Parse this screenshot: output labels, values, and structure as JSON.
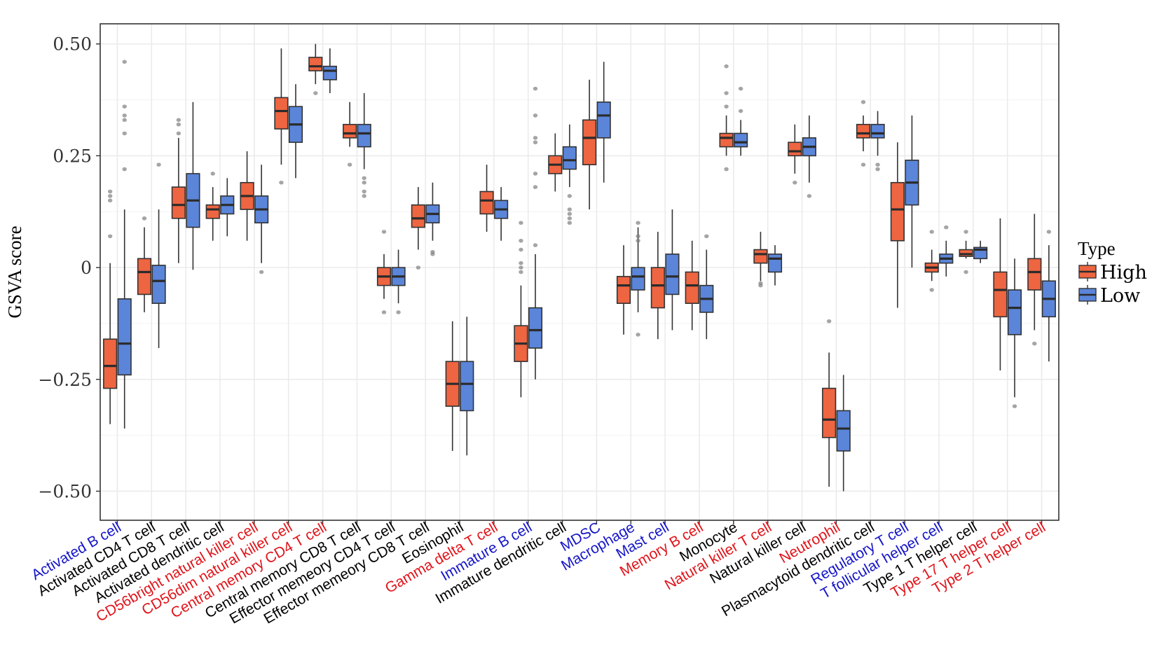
{
  "chart_data": {
    "type": "box",
    "title": "",
    "xlabel": "",
    "ylabel": "GSVA score",
    "ylim": [
      -0.565,
      0.545
    ],
    "yticks": [
      0.5,
      0.25,
      0,
      -0.25,
      -0.5
    ],
    "ytick_labels": [
      "0.50",
      "0.25",
      "0",
      "−0.25",
      "−0.50"
    ],
    "grid": true,
    "legend": {
      "title": "Type",
      "position": "right",
      "entries": [
        {
          "name": "High",
          "color": "#ee6541"
        },
        {
          "name": "Low",
          "color": "#5b85d9"
        }
      ]
    },
    "label_colors": {
      "blue": "#1515c8",
      "red": "#e0141a",
      "black": "#000000"
    },
    "categories": [
      {
        "label": "Activated B cell",
        "color": "blue"
      },
      {
        "label": "Activated CD4 T cell",
        "color": "black"
      },
      {
        "label": "Activated CD8 T cell",
        "color": "black"
      },
      {
        "label": "Activated dendritic cell",
        "color": "black"
      },
      {
        "label": "CD56bright natural killer cell",
        "color": "red"
      },
      {
        "label": "CD56dim natural killer cell",
        "color": "red"
      },
      {
        "label": "Central memory CD4 T cell",
        "color": "red"
      },
      {
        "label": "Central memory CD8 T cell",
        "color": "black"
      },
      {
        "label": "Effector memeory CD4 T cell",
        "color": "black"
      },
      {
        "label": "Effector memeory CD8 T cell",
        "color": "black"
      },
      {
        "label": "Eosinophil",
        "color": "black"
      },
      {
        "label": "Gamma delta T cell",
        "color": "red"
      },
      {
        "label": "Immature  B cell",
        "color": "blue"
      },
      {
        "label": "Immature dendritic cell",
        "color": "black"
      },
      {
        "label": "MDSC",
        "color": "blue"
      },
      {
        "label": "Macrophage",
        "color": "blue"
      },
      {
        "label": "Mast cell",
        "color": "blue"
      },
      {
        "label": "Memory B cell",
        "color": "red"
      },
      {
        "label": "Monocyte",
        "color": "black"
      },
      {
        "label": "Natural killer T cell",
        "color": "red"
      },
      {
        "label": "Natural killer cell",
        "color": "black"
      },
      {
        "label": "Neutrophil",
        "color": "red"
      },
      {
        "label": "Plasmacytoid dendritic cell",
        "color": "black"
      },
      {
        "label": "Regulatory T cell",
        "color": "blue"
      },
      {
        "label": "T follicular helper cell",
        "color": "blue"
      },
      {
        "label": "Type 1 T helper cell",
        "color": "black"
      },
      {
        "label": "Type 17 T helper cell",
        "color": "red"
      },
      {
        "label": "Type 2 T helper cell",
        "color": "red"
      }
    ],
    "stats_format": [
      "whisker_low",
      "q1",
      "median",
      "q3",
      "whisker_high"
    ],
    "series": [
      {
        "name": "High",
        "color": "#ee6541",
        "boxes": [
          {
            "stats": [
              -0.35,
              -0.27,
              -0.22,
              -0.16,
              0.01
            ],
            "outliers": [
              0.07,
              0.15,
              0.16,
              0.17
            ]
          },
          {
            "stats": [
              -0.1,
              -0.06,
              -0.01,
              0.02,
              0.09
            ],
            "outliers": [
              0.11
            ]
          },
          {
            "stats": [
              0.01,
              0.11,
              0.14,
              0.18,
              0.29
            ],
            "outliers": [
              0.3,
              0.32,
              0.33
            ]
          },
          {
            "stats": [
              0.06,
              0.11,
              0.13,
              0.14,
              0.18
            ],
            "outliers": [
              0.21
            ]
          },
          {
            "stats": [
              0.06,
              0.13,
              0.16,
              0.19,
              0.26
            ],
            "outliers": []
          },
          {
            "stats": [
              0.23,
              0.31,
              0.35,
              0.38,
              0.49
            ],
            "outliers": [
              0.19
            ]
          },
          {
            "stats": [
              0.41,
              0.44,
              0.45,
              0.47,
              0.5
            ],
            "outliers": [
              0.39
            ]
          },
          {
            "stats": [
              0.27,
              0.29,
              0.3,
              0.32,
              0.37
            ],
            "outliers": [
              0.23
            ]
          },
          {
            "stats": [
              -0.07,
              -0.04,
              -0.02,
              0.0,
              0.03
            ],
            "outliers": [
              -0.1,
              0.08
            ]
          },
          {
            "stats": [
              0.04,
              0.09,
              0.11,
              0.14,
              0.18
            ],
            "outliers": [
              0.0
            ]
          },
          {
            "stats": [
              -0.41,
              -0.31,
              -0.26,
              -0.21,
              -0.12
            ],
            "outliers": []
          },
          {
            "stats": [
              0.08,
              0.12,
              0.15,
              0.17,
              0.23
            ],
            "outliers": []
          },
          {
            "stats": [
              -0.29,
              -0.21,
              -0.17,
              -0.13,
              -0.04
            ],
            "outliers": [
              -0.01,
              0.0,
              0.01,
              0.04,
              0.06,
              0.1
            ]
          },
          {
            "stats": [
              0.17,
              0.21,
              0.23,
              0.25,
              0.3
            ],
            "outliers": []
          },
          {
            "stats": [
              0.13,
              0.23,
              0.29,
              0.33,
              0.42
            ],
            "outliers": []
          },
          {
            "stats": [
              -0.15,
              -0.08,
              -0.04,
              -0.02,
              0.05
            ],
            "outliers": []
          },
          {
            "stats": [
              -0.16,
              -0.09,
              -0.04,
              0.0,
              0.08
            ],
            "outliers": []
          },
          {
            "stats": [
              -0.14,
              -0.08,
              -0.04,
              -0.01,
              0.06
            ],
            "outliers": []
          },
          {
            "stats": [
              0.25,
              0.27,
              0.29,
              0.3,
              0.34
            ],
            "outliers": [
              0.22,
              0.36,
              0.39,
              0.45
            ]
          },
          {
            "stats": [
              -0.03,
              0.01,
              0.03,
              0.04,
              0.08
            ],
            "outliers": [
              -0.04,
              -0.035
            ]
          },
          {
            "stats": [
              0.21,
              0.25,
              0.26,
              0.28,
              0.32
            ],
            "outliers": [
              0.19
            ]
          },
          {
            "stats": [
              -0.49,
              -0.38,
              -0.34,
              -0.27,
              -0.19
            ],
            "outliers": [
              -0.12
            ]
          },
          {
            "stats": [
              0.26,
              0.29,
              0.3,
              0.32,
              0.34
            ],
            "outliers": [
              0.23,
              0.37
            ]
          },
          {
            "stats": [
              -0.09,
              0.06,
              0.13,
              0.19,
              0.28
            ],
            "outliers": []
          },
          {
            "stats": [
              -0.03,
              -0.01,
              0.0,
              0.01,
              0.04
            ],
            "outliers": [
              -0.05,
              0.08
            ]
          },
          {
            "stats": [
              0.02,
              0.025,
              0.03,
              0.04,
              0.06
            ],
            "outliers": [
              -0.01,
              0.08
            ]
          },
          {
            "stats": [
              -0.23,
              -0.11,
              -0.05,
              -0.01,
              0.11
            ],
            "outliers": []
          },
          {
            "stats": [
              -0.14,
              -0.05,
              -0.01,
              0.02,
              0.12
            ],
            "outliers": [
              -0.17
            ]
          }
        ]
      },
      {
        "name": "Low",
        "color": "#5b85d9",
        "boxes": [
          {
            "stats": [
              -0.36,
              -0.24,
              -0.17,
              -0.07,
              0.13
            ],
            "outliers": [
              0.22,
              0.3,
              0.33,
              0.34,
              0.36,
              0.46
            ]
          },
          {
            "stats": [
              -0.18,
              -0.08,
              -0.03,
              0.005,
              0.13
            ],
            "outliers": [
              0.23
            ]
          },
          {
            "stats": [
              -0.005,
              0.09,
              0.15,
              0.21,
              0.37
            ],
            "outliers": []
          },
          {
            "stats": [
              0.07,
              0.12,
              0.14,
              0.16,
              0.2
            ],
            "outliers": []
          },
          {
            "stats": [
              0.01,
              0.1,
              0.13,
              0.16,
              0.23
            ],
            "outliers": [
              -0.01
            ]
          },
          {
            "stats": [
              0.2,
              0.28,
              0.32,
              0.36,
              0.41
            ],
            "outliers": []
          },
          {
            "stats": [
              0.39,
              0.42,
              0.44,
              0.45,
              0.49
            ],
            "outliers": []
          },
          {
            "stats": [
              0.22,
              0.27,
              0.3,
              0.32,
              0.39
            ],
            "outliers": [
              0.16,
              0.17,
              0.19,
              0.2
            ]
          },
          {
            "stats": [
              -0.08,
              -0.04,
              -0.02,
              0.0,
              0.04
            ],
            "outliers": [
              -0.1
            ]
          },
          {
            "stats": [
              0.06,
              0.1,
              0.12,
              0.14,
              0.19
            ],
            "outliers": [
              0.03,
              0.035
            ]
          },
          {
            "stats": [
              -0.42,
              -0.32,
              -0.26,
              -0.21,
              -0.11
            ],
            "outliers": []
          },
          {
            "stats": [
              0.06,
              0.11,
              0.13,
              0.15,
              0.18
            ],
            "outliers": []
          },
          {
            "stats": [
              -0.25,
              -0.18,
              -0.14,
              -0.09,
              0.03
            ],
            "outliers": [
              0.05,
              0.18,
              0.21,
              0.28,
              0.29,
              0.34,
              0.4
            ]
          },
          {
            "stats": [
              0.18,
              0.22,
              0.24,
              0.27,
              0.32
            ],
            "outliers": [
              0.1,
              0.11,
              0.12,
              0.13,
              0.16
            ]
          },
          {
            "stats": [
              0.19,
              0.29,
              0.34,
              0.37,
              0.46
            ],
            "outliers": []
          },
          {
            "stats": [
              -0.1,
              -0.05,
              -0.02,
              0.0,
              0.09
            ],
            "outliers": [
              -0.15,
              0.06,
              0.07,
              0.1
            ]
          },
          {
            "stats": [
              -0.14,
              -0.06,
              -0.02,
              0.03,
              0.13
            ],
            "outliers": []
          },
          {
            "stats": [
              -0.16,
              -0.1,
              -0.07,
              -0.04,
              0.04
            ],
            "outliers": [
              0.07
            ]
          },
          {
            "stats": [
              0.25,
              0.27,
              0.28,
              0.3,
              0.33
            ],
            "outliers": [
              0.35,
              0.4
            ]
          },
          {
            "stats": [
              -0.04,
              -0.01,
              0.02,
              0.03,
              0.05
            ],
            "outliers": []
          },
          {
            "stats": [
              0.19,
              0.25,
              0.27,
              0.29,
              0.34
            ],
            "outliers": [
              0.16
            ]
          },
          {
            "stats": [
              -0.5,
              -0.41,
              -0.36,
              -0.32,
              -0.24
            ],
            "outliers": []
          },
          {
            "stats": [
              0.25,
              0.29,
              0.3,
              0.32,
              0.35
            ],
            "outliers": [
              0.22,
              0.23
            ]
          },
          {
            "stats": [
              0.0,
              0.14,
              0.19,
              0.24,
              0.34
            ],
            "outliers": []
          },
          {
            "stats": [
              -0.02,
              0.01,
              0.02,
              0.03,
              0.06
            ],
            "outliers": [
              0.09
            ]
          },
          {
            "stats": [
              0.01,
              0.02,
              0.04,
              0.045,
              0.06
            ],
            "outliers": []
          },
          {
            "stats": [
              -0.29,
              -0.15,
              -0.09,
              -0.05,
              0.02
            ],
            "outliers": [
              -0.31
            ]
          },
          {
            "stats": [
              -0.21,
              -0.11,
              -0.07,
              -0.03,
              0.05
            ],
            "outliers": [
              0.08
            ]
          }
        ]
      }
    ]
  }
}
